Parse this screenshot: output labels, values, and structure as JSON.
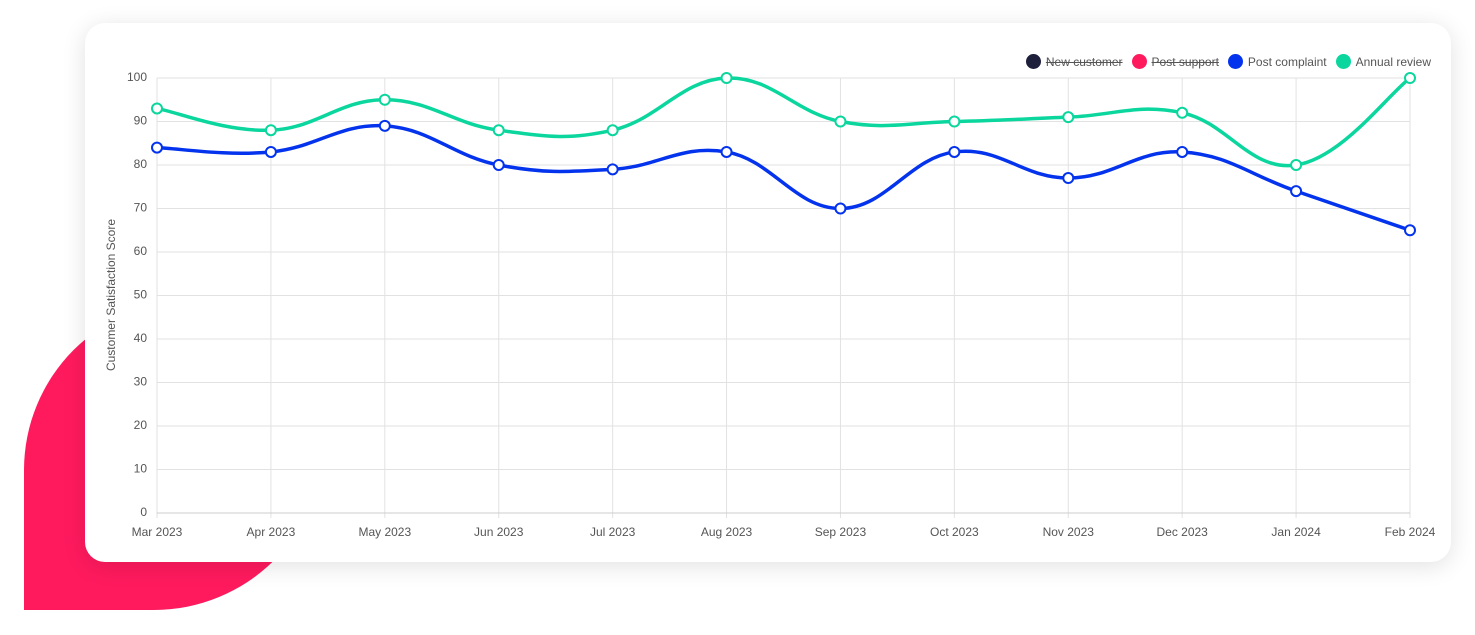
{
  "chart_data": {
    "type": "line",
    "categories": [
      "Mar 2023",
      "Apr 2023",
      "May 2023",
      "Jun 2023",
      "Jul 2023",
      "Aug 2023",
      "Sep 2023",
      "Oct 2023",
      "Nov 2023",
      "Dec 2023",
      "Jan 2024",
      "Feb 2024"
    ],
    "series": [
      {
        "name": "New customer",
        "color": "#1e1f3b",
        "hidden": true,
        "values": [
          null,
          null,
          null,
          null,
          null,
          null,
          null,
          null,
          null,
          null,
          null,
          null
        ]
      },
      {
        "name": "Post support",
        "color": "#ff1a5e",
        "hidden": true,
        "values": [
          null,
          null,
          null,
          null,
          null,
          null,
          null,
          null,
          null,
          null,
          null,
          null
        ]
      },
      {
        "name": "Post complaint",
        "color": "#0433ee",
        "hidden": false,
        "values": [
          84,
          83,
          89,
          80,
          79,
          83,
          70,
          83,
          77,
          83,
          74,
          65
        ]
      },
      {
        "name": "Annual review",
        "color": "#0ad69d",
        "hidden": false,
        "values": [
          93,
          88,
          95,
          88,
          88,
          100,
          90,
          90,
          91,
          92,
          80,
          100
        ]
      }
    ],
    "y_axis_label": "Customer Satisfaction Score",
    "ylim": [
      0,
      100
    ],
    "yticks": [
      0,
      10,
      20,
      30,
      40,
      50,
      60,
      70,
      80,
      90,
      100
    ],
    "grid": true,
    "legend": "top-right"
  }
}
